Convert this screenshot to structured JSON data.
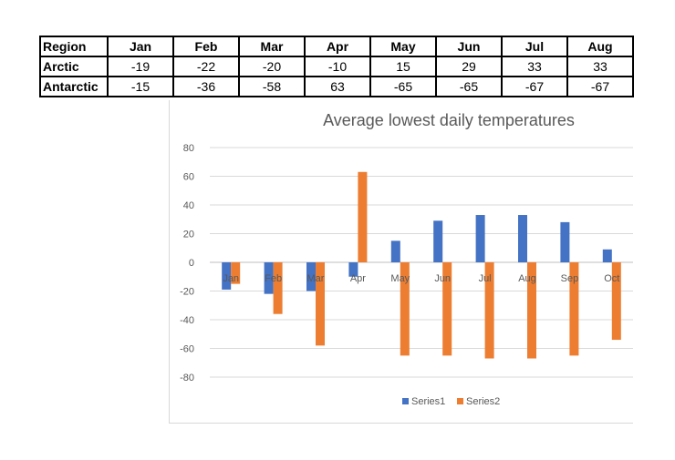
{
  "table": {
    "headers": [
      "Region",
      "Jan",
      "Feb",
      "Mar",
      "Apr",
      "May",
      "Jun",
      "Jul",
      "Aug"
    ],
    "rows": [
      {
        "region": "Arctic",
        "values": [
          "-19",
          "-22",
          "-20",
          "-10",
          "15",
          "29",
          "33",
          "33"
        ]
      },
      {
        "region": "Antarctic",
        "values": [
          "-15",
          "-36",
          "-58",
          "63",
          "-65",
          "-65",
          "-67",
          "-67"
        ]
      }
    ]
  },
  "chart_data": {
    "type": "bar",
    "title": "Average lowest daily temperatures",
    "categories": [
      "Jan",
      "Feb",
      "Mar",
      "Apr",
      "May",
      "Jun",
      "Jul",
      "Aug",
      "Sep",
      "Oct"
    ],
    "series": [
      {
        "name": "Series1",
        "color": "#4472C4",
        "values": [
          -19,
          -22,
          -20,
          -10,
          15,
          29,
          33,
          33,
          28,
          9
        ]
      },
      {
        "name": "Series2",
        "color": "#ED7D31",
        "values": [
          -15,
          -36,
          -58,
          63,
          -65,
          -65,
          -67,
          -67,
          -65,
          -54
        ]
      }
    ],
    "ylim": [
      -80,
      80
    ],
    "yticks": [
      "80",
      "60",
      "40",
      "20",
      "0",
      "-20",
      "-40",
      "-60",
      "-80"
    ],
    "xlabel": "",
    "ylabel": "",
    "grid": true,
    "legend": "bottom"
  }
}
